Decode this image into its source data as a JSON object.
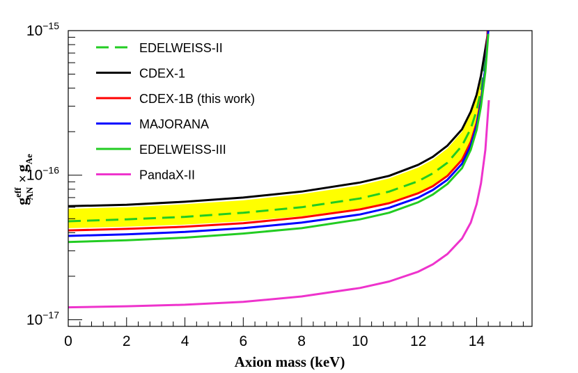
{
  "chart_data": {
    "type": "line",
    "title": "",
    "xlabel": "Axion mass (keV)",
    "ylabel": {
      "g": "g",
      "eff": "eff",
      "AN": "AN",
      "times": "×",
      "g2": "g",
      "Ae": "Ae"
    },
    "xlim": [
      0,
      15.9
    ],
    "ylim": [
      9e-18,
      1e-15
    ],
    "yscale": "log",
    "x_ticks": [
      "0",
      "2",
      "4",
      "6",
      "8",
      "10",
      "12",
      "14"
    ],
    "y_ticks": [
      {
        "base": "10",
        "exp": "−15"
      },
      {
        "base": "10",
        "exp": "−16"
      },
      {
        "base": "10",
        "exp": "−17"
      }
    ],
    "band": {
      "name": "CDEX-1B uncertainty band",
      "color": "#ffff00",
      "lower": [
        [
          0,
          4.3e-17
        ],
        [
          2,
          4.4e-17
        ],
        [
          4,
          4.55e-17
        ],
        [
          6,
          4.8e-17
        ],
        [
          8,
          5.2e-17
        ],
        [
          10,
          5.9e-17
        ],
        [
          11,
          6.5e-17
        ],
        [
          12,
          7.6e-17
        ],
        [
          12.5,
          8.5e-17
        ],
        [
          13,
          1e-16
        ],
        [
          13.5,
          1.3e-16
        ],
        [
          13.8,
          1.75e-16
        ],
        [
          14.0,
          2.4e-16
        ],
        [
          14.15,
          3.5e-16
        ]
      ],
      "upper": [
        [
          0,
          5.85e-17
        ],
        [
          2,
          6e-17
        ],
        [
          4,
          6.3e-17
        ],
        [
          6,
          6.7e-17
        ],
        [
          8,
          7.4e-17
        ],
        [
          10,
          8.5e-17
        ],
        [
          11,
          9.5e-17
        ],
        [
          12,
          1.13e-16
        ],
        [
          12.5,
          1.28e-16
        ],
        [
          13,
          1.53e-16
        ],
        [
          13.5,
          2e-16
        ],
        [
          13.8,
          2.65e-16
        ],
        [
          14.0,
          3.5e-16
        ],
        [
          14.15,
          4.6e-16
        ]
      ]
    },
    "series": [
      {
        "name": "EDELWEISS-II",
        "color": "#22cc22",
        "dash": true,
        "points": [
          [
            0,
            4.8e-17
          ],
          [
            2,
            4.95e-17
          ],
          [
            4,
            5.15e-17
          ],
          [
            6,
            5.5e-17
          ],
          [
            8,
            6e-17
          ],
          [
            10,
            6.9e-17
          ],
          [
            11,
            7.7e-17
          ],
          [
            12,
            9.1e-17
          ],
          [
            12.5,
            1.03e-16
          ],
          [
            13,
            1.22e-16
          ],
          [
            13.5,
            1.6e-16
          ],
          [
            13.8,
            2.1e-16
          ],
          [
            14.0,
            2.8e-16
          ],
          [
            14.15,
            3.9e-16
          ],
          [
            14.3,
            6.3e-16
          ],
          [
            14.38,
            1e-15
          ]
        ]
      },
      {
        "name": "CDEX-1",
        "color": "#000000",
        "dash": false,
        "points": [
          [
            0,
            6.1e-17
          ],
          [
            2,
            6.25e-17
          ],
          [
            4,
            6.55e-17
          ],
          [
            6,
            7e-17
          ],
          [
            8,
            7.7e-17
          ],
          [
            10,
            8.9e-17
          ],
          [
            11,
            9.9e-17
          ],
          [
            12,
            1.18e-16
          ],
          [
            12.5,
            1.34e-16
          ],
          [
            13,
            1.6e-16
          ],
          [
            13.5,
            2.08e-16
          ],
          [
            13.8,
            2.75e-16
          ],
          [
            14.0,
            3.6e-16
          ],
          [
            14.15,
            4.9e-16
          ],
          [
            14.3,
            7.5e-16
          ],
          [
            14.4,
            1e-15
          ]
        ]
      },
      {
        "name": "CDEX-1B (this work)",
        "color": "#ff0000",
        "dash": false,
        "points": [
          [
            0,
            4.15e-17
          ],
          [
            2,
            4.25e-17
          ],
          [
            4,
            4.4e-17
          ],
          [
            6,
            4.65e-17
          ],
          [
            8,
            5.1e-17
          ],
          [
            10,
            5.8e-17
          ],
          [
            11,
            6.4e-17
          ],
          [
            12,
            7.5e-17
          ],
          [
            12.5,
            8.4e-17
          ],
          [
            13,
            9.9e-17
          ],
          [
            13.5,
            1.28e-16
          ],
          [
            13.8,
            1.7e-16
          ],
          [
            14.0,
            2.3e-16
          ],
          [
            14.15,
            3.3e-16
          ],
          [
            14.3,
            5.5e-16
          ],
          [
            14.38,
            1e-15
          ]
        ]
      },
      {
        "name": "MAJORANA",
        "color": "#0000ff",
        "dash": false,
        "points": [
          [
            0,
            3.8e-17
          ],
          [
            2,
            3.9e-17
          ],
          [
            4,
            4.05e-17
          ],
          [
            6,
            4.3e-17
          ],
          [
            8,
            4.7e-17
          ],
          [
            10,
            5.35e-17
          ],
          [
            11,
            5.95e-17
          ],
          [
            12,
            7e-17
          ],
          [
            12.5,
            7.9e-17
          ],
          [
            13,
            9.3e-17
          ],
          [
            13.5,
            1.2e-16
          ],
          [
            13.8,
            1.6e-16
          ],
          [
            14.0,
            2.2e-16
          ],
          [
            14.15,
            3.2e-16
          ],
          [
            14.3,
            5.6e-16
          ],
          [
            14.4,
            1e-15
          ]
        ]
      },
      {
        "name": "EDELWEISS-III",
        "color": "#22cc22",
        "dash": false,
        "points": [
          [
            0,
            3.45e-17
          ],
          [
            2,
            3.55e-17
          ],
          [
            4,
            3.7e-17
          ],
          [
            6,
            3.95e-17
          ],
          [
            8,
            4.3e-17
          ],
          [
            10,
            4.95e-17
          ],
          [
            11,
            5.5e-17
          ],
          [
            12,
            6.5e-17
          ],
          [
            12.5,
            7.35e-17
          ],
          [
            13,
            8.7e-17
          ],
          [
            13.5,
            1.12e-16
          ],
          [
            13.8,
            1.5e-16
          ],
          [
            14.0,
            2.05e-16
          ],
          [
            14.15,
            3e-16
          ],
          [
            14.3,
            5.2e-16
          ],
          [
            14.4,
            9.5e-16
          ]
        ]
      },
      {
        "name": "PandaX-II",
        "color": "#ee33cc",
        "dash": false,
        "points": [
          [
            0,
            1.22e-17
          ],
          [
            2,
            1.24e-17
          ],
          [
            4,
            1.27e-17
          ],
          [
            6,
            1.33e-17
          ],
          [
            8,
            1.45e-17
          ],
          [
            10,
            1.66e-17
          ],
          [
            11,
            1.84e-17
          ],
          [
            12,
            2.15e-17
          ],
          [
            12.5,
            2.42e-17
          ],
          [
            13,
            2.85e-17
          ],
          [
            13.5,
            3.65e-17
          ],
          [
            13.8,
            4.7e-17
          ],
          [
            14.0,
            6.3e-17
          ],
          [
            14.15,
            8.8e-17
          ],
          [
            14.3,
            1.5e-16
          ],
          [
            14.42,
            3.3e-16
          ]
        ]
      }
    ]
  }
}
